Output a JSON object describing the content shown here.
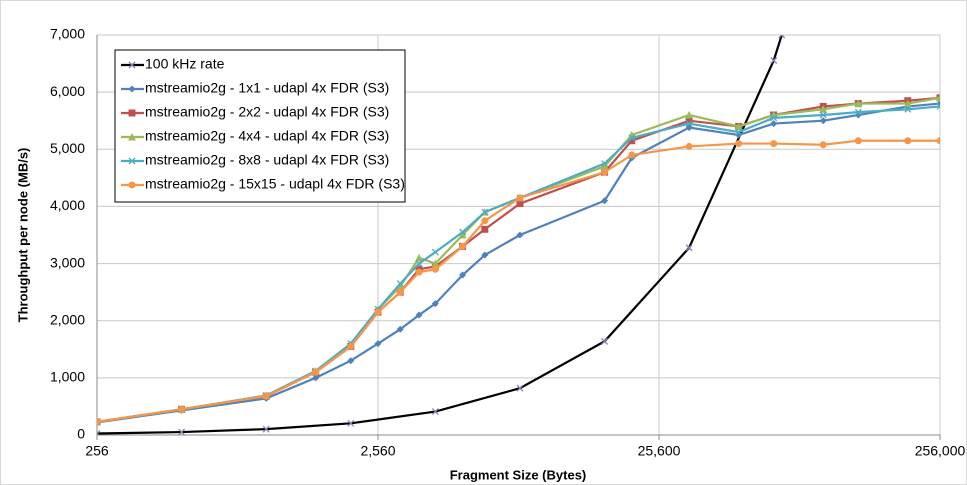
{
  "chart_data": {
    "type": "line",
    "x_label": "Fragment Size (Bytes)",
    "y_label": "Throughput per node (MB/s)",
    "xscale": "log",
    "xlim": [
      256,
      256000
    ],
    "xticks": [
      256,
      {
        "value": 2560,
        "label": "2,560"
      },
      {
        "value": 25600,
        "label": "25,600"
      },
      {
        "value": 256000,
        "label": "256,000"
      }
    ],
    "ylim": [
      0,
      7000
    ],
    "yticks": [
      0,
      {
        "value": 1000,
        "label": "1,000"
      },
      {
        "value": 2000,
        "label": "2,000"
      },
      {
        "value": 3000,
        "label": "3,000"
      },
      {
        "value": 4000,
        "label": "4,000"
      },
      {
        "value": 5000,
        "label": "5,000"
      },
      {
        "value": 6000,
        "label": "6,000"
      },
      {
        "value": 7000,
        "label": "7,000"
      }
    ],
    "grid": true,
    "legend": "upper left",
    "series": [
      {
        "name": "100 kHz rate",
        "color": "#000000",
        "marker": "x",
        "x": [
          256,
          512,
          1024,
          2048,
          4096,
          8192,
          16384,
          32768,
          65536,
          70000
        ],
        "values": [
          25.6,
          51.2,
          102.4,
          204.8,
          409.6,
          819.2,
          1638.4,
          3276.8,
          6553.6,
          7000
        ]
      },
      {
        "name": "mstreamio2g - 1x1 - udapl 4x FDR (S3)",
        "color": "#4f81bd",
        "marker": "diamond",
        "x": [
          256,
          512,
          1024,
          1536,
          2048,
          2560,
          3072,
          3584,
          4096,
          5120,
          6144,
          8192,
          16384,
          20480,
          32768,
          49152,
          65536,
          98304,
          131072,
          196608,
          256000
        ],
        "values": [
          220,
          430,
          640,
          1000,
          1300,
          1600,
          1850,
          2100,
          2300,
          2800,
          3150,
          3500,
          4100,
          4850,
          5380,
          5250,
          5450,
          5500,
          5600,
          5750,
          5800
        ]
      },
      {
        "name": "mstreamio2g - 2x2 - udapl 4x FDR (S3)",
        "color": "#c0504d",
        "marker": "square",
        "x": [
          256,
          512,
          1024,
          1536,
          2048,
          2560,
          3072,
          3584,
          4096,
          5120,
          6144,
          8192,
          16384,
          20480,
          32768,
          49152,
          65536,
          98304,
          131072,
          196608,
          256000
        ],
        "values": [
          230,
          450,
          680,
          1100,
          1550,
          2150,
          2500,
          2900,
          2950,
          3300,
          3600,
          4050,
          4600,
          5150,
          5500,
          5400,
          5600,
          5750,
          5800,
          5850,
          5900
        ]
      },
      {
        "name": "mstreamio2g - 4x4 - udapl 4x FDR (S3)",
        "color": "#9bbb59",
        "marker": "triangle",
        "x": [
          256,
          512,
          1024,
          1536,
          2048,
          2560,
          3072,
          3584,
          4096,
          5120,
          6144,
          8192,
          16384,
          20480,
          32768,
          49152,
          65536,
          98304,
          131072,
          196608,
          256000
        ],
        "values": [
          230,
          450,
          690,
          1120,
          1580,
          2200,
          2600,
          3100,
          3000,
          3500,
          3900,
          4150,
          4700,
          5250,
          5600,
          5400,
          5600,
          5700,
          5800,
          5800,
          5900
        ]
      },
      {
        "name": "mstreamio2g - 8x8 - udapl 4x FDR (S3)",
        "color": "#4bacc6",
        "marker": "x",
        "x": [
          256,
          512,
          1024,
          1536,
          2048,
          2560,
          3072,
          3584,
          4096,
          5120,
          6144,
          8192,
          16384,
          20480,
          32768,
          49152,
          65536,
          98304,
          131072,
          196608,
          256000
        ],
        "values": [
          230,
          450,
          690,
          1120,
          1600,
          2200,
          2650,
          3000,
          3200,
          3550,
          3900,
          4150,
          4750,
          5200,
          5450,
          5300,
          5550,
          5600,
          5650,
          5700,
          5750
        ]
      },
      {
        "name": "mstreamio2g - 15x15 - udapl 4x FDR (S3)",
        "color": "#f79646",
        "marker": "circle",
        "x": [
          256,
          512,
          1024,
          1536,
          2048,
          2560,
          3072,
          3584,
          4096,
          5120,
          6144,
          8192,
          16384,
          20480,
          32768,
          49152,
          65536,
          98304,
          131072,
          196608,
          256000
        ],
        "values": [
          230,
          450,
          680,
          1100,
          1550,
          2150,
          2500,
          2850,
          2900,
          3300,
          3750,
          4150,
          4600,
          4900,
          5050,
          5100,
          5100,
          5080,
          5150,
          5150,
          5150
        ]
      }
    ]
  }
}
